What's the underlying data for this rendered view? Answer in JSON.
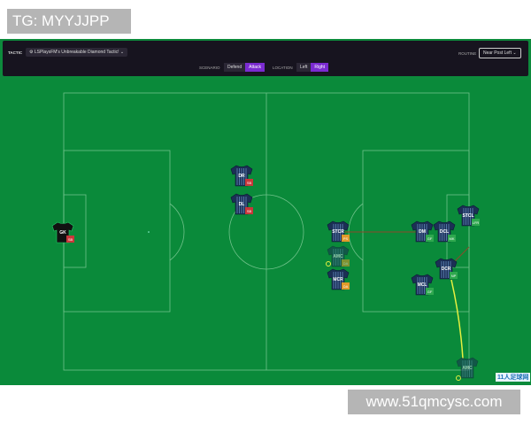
{
  "watermark_top": "TG: MYYJJPP",
  "watermark_bottom": "www.51qmcysc.com",
  "corner_logo": "11人足球网",
  "toolbar": {
    "tactic_label": "TACTIC",
    "tactic_value": "LSPlaysFM's Unbreakable Diamond Tactic!",
    "routine_label": "ROUTINE",
    "routine_value": "Near Post Left",
    "scenario_label": "SCENARIO",
    "scenario_options": [
      "Defend",
      "Attack"
    ],
    "scenario_selected": "Attack",
    "location_label": "LOCATION",
    "location_options": [
      "Left",
      "Right"
    ],
    "location_selected": "Right"
  },
  "players": [
    {
      "pos": "GK",
      "role": "SB",
      "badge_color": "#c8373a",
      "kit": "gk"
    },
    {
      "pos": "DR",
      "role": "SB",
      "badge_color": "#c8373a",
      "kit": "home"
    },
    {
      "pos": "DL",
      "role": "SB",
      "badge_color": "#c8373a",
      "kit": "home"
    },
    {
      "pos": "STCR",
      "role": "PS",
      "badge_color": "#e09a2a",
      "kit": "home"
    },
    {
      "pos": "AMC",
      "role": "DA",
      "badge_color": "#e09a2a",
      "kit": "faded"
    },
    {
      "pos": "MCR",
      "role": "DA",
      "badge_color": "#e09a2a",
      "kit": "home"
    },
    {
      "pos": "DM",
      "role": "GF",
      "badge_color": "#2fa84f",
      "kit": "home"
    },
    {
      "pos": "DCL",
      "role": "MK",
      "badge_color": "#2fa84f",
      "kit": "home"
    },
    {
      "pos": "STCL",
      "role": "LFR",
      "badge_color": "#2fa84f",
      "kit": "home"
    },
    {
      "pos": "DCR",
      "role": "NP",
      "badge_color": "#2fa84f",
      "kit": "home"
    },
    {
      "pos": "MCL",
      "role": "GF",
      "badge_color": "#2fa84f",
      "kit": "home"
    },
    {
      "pos": "AMC",
      "role": "",
      "badge_color": "",
      "kit": "faded"
    }
  ]
}
